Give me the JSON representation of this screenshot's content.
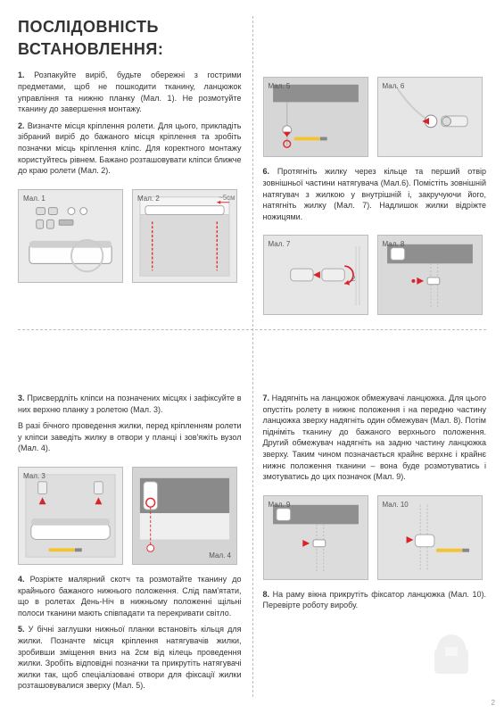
{
  "title": "ПОСЛІДОВНІСТЬ ВСТАНОВЛЕННЯ:",
  "step1": "1. Розпакуйте виріб, будьте обережні з гострими предметами, щоб не пошкодити тканину, ланцюжок управління та нижню планку (Мал. 1). Не розмотуйте тканину до завершення монтажу.",
  "step2": "2. Визначте місця кріплення ролети. Для цього, прикладіть зібраний виріб до бажаного місця кріплення та зробіть позначки місць кріплення кліпс. Для коректного монтажу користуйтесь рівнем. Бажано розташовувати кліпси ближче до краю ролети (Мал. 2).",
  "step3a": "3. Присвердліть кліпси на позначених місцях і зафіксуйте в них верхню планку з ролетою (Мал. 3).",
  "step3b": "В разі бічного проведення жилки, перед кріпленням ролети у кліпси заведіть жилку в отвори у планці і зов'яжіть вузол (Мал. 4).",
  "step4": "4. Розріжте малярний скотч та розмотайте тканину до крайнього бажаного нижнього положення. Слід пам'ятати, що в ролетах День-Ніч в нижньому положенні щільні полоси  тканини мають співпадати та перекривати світло.",
  "step5": "5. У бічні заглушки нижньої планки встановіть кільця для жилки. Позначте місця кріплення натягувачів жилки, зробивши зміщення вниз на 2см від кілець проведення жилки. Зробіть відповідні позначки та прикрутіть натягувачі жилки так, щоб спеціалізовані отвори для фіксації жилки розташовувалися зверху (Мал. 5).",
  "step6": "6. Протягніть жилку через кільце та перший отвір зовнішньої частини натягувача (Мал.6). Помістіть зовнішній натягувач з жилкою у внутрішній і, закручуючи його, натягніть жилку (Мал. 7). Надлишок жилки відріжте ножицями.",
  "step7": "7. Надягніть на ланцюжок обмежувачі ланцюжка. Для цього опустіть ролету в нижнє положення і на передню частину ланцюжка зверху надягніть один обмежувач (Мал. 8). Потім підніміть тканину до бажаного верхнього положення. Другий обмежувач надягніть на задню частину ланцюжка зверху. Таким чином позначається крайнє верхнє і крайнє нижнє положення тканини – вона буде розмотуватись і змотуватись до цих позначок (Мал. 9).",
  "step8": "8. На раму вікна прикрутіть фіксатор ланцюжка (Мал. 10). Перевірте роботу виробу.",
  "figs": {
    "f1": "Мал. 1",
    "f2": "Мал. 2",
    "f3": "Мал. 3",
    "f4": "Мал. 4",
    "f5": "Мал. 5",
    "f6": "Мал. 6",
    "f7": "Мал. 7",
    "f8": "Мал. 8",
    "f9": "Мал. 9",
    "f10": "Мал. 10"
  },
  "dist": "~5см",
  "pagenum": "2",
  "colors": {
    "fig_bg": "#eaeaea",
    "fig_border": "#bbb",
    "text": "#333",
    "accent_red": "#e03030",
    "tool_yellow": "#f4c430",
    "arrow_red": "#d8232a"
  }
}
